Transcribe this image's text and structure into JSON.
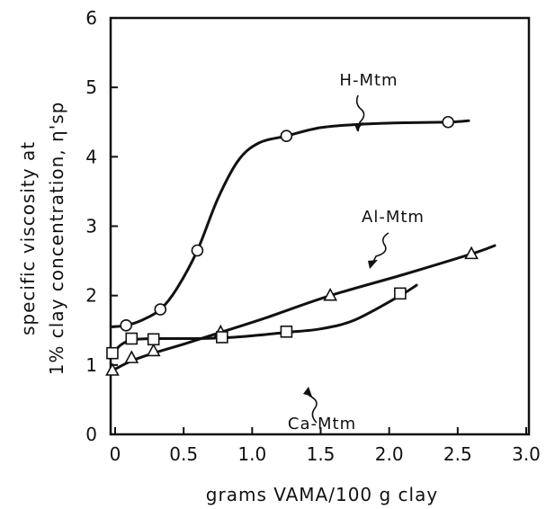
{
  "chart_data": {
    "type": "line",
    "title": "",
    "xlabel": "grams VAMA/100 g clay",
    "ylabel_line1": "specific viscosity at",
    "ylabel_line2": "1% clay concentration, η'sp",
    "xlim": [
      0,
      3.0
    ],
    "ylim": [
      0,
      6
    ],
    "x_ticks": [
      "0",
      "0.5",
      "1.0",
      "1.5",
      "2.0",
      "2.5",
      "3.0"
    ],
    "y_ticks": [
      "0",
      "1",
      "2",
      "3",
      "4",
      "5",
      "6"
    ],
    "grid": false,
    "series": [
      {
        "name": "H-Mtm",
        "marker": "circle",
        "points": [
          [
            0.08,
            1.57
          ],
          [
            0.33,
            1.8
          ],
          [
            0.6,
            2.65
          ],
          [
            1.25,
            4.3
          ],
          [
            2.43,
            4.5
          ]
        ],
        "curve": [
          [
            -0.02,
            1.55
          ],
          [
            0.08,
            1.57
          ],
          [
            0.2,
            1.65
          ],
          [
            0.33,
            1.8
          ],
          [
            0.45,
            2.1
          ],
          [
            0.6,
            2.65
          ],
          [
            0.75,
            3.4
          ],
          [
            0.9,
            3.95
          ],
          [
            1.05,
            4.2
          ],
          [
            1.25,
            4.3
          ],
          [
            1.5,
            4.42
          ],
          [
            1.8,
            4.47
          ],
          [
            2.1,
            4.49
          ],
          [
            2.43,
            4.5
          ],
          [
            2.58,
            4.52
          ]
        ]
      },
      {
        "name": "Al-Mtm",
        "marker": "triangle",
        "points": [
          [
            -0.02,
            0.92
          ],
          [
            0.12,
            1.1
          ],
          [
            0.28,
            1.2
          ],
          [
            0.77,
            1.47
          ],
          [
            1.57,
            2.0
          ],
          [
            2.6,
            2.6
          ]
        ],
        "curve": [
          [
            -0.02,
            0.92
          ],
          [
            0.12,
            1.06
          ],
          [
            0.28,
            1.17
          ],
          [
            0.5,
            1.3
          ],
          [
            0.77,
            1.47
          ],
          [
            1.1,
            1.68
          ],
          [
            1.57,
            2.0
          ],
          [
            2.1,
            2.3
          ],
          [
            2.6,
            2.6
          ],
          [
            2.77,
            2.72
          ]
        ]
      },
      {
        "name": "Ca-Mtm",
        "marker": "square",
        "points": [
          [
            -0.02,
            1.17
          ],
          [
            0.12,
            1.38
          ],
          [
            0.28,
            1.37
          ],
          [
            0.78,
            1.4
          ],
          [
            1.25,
            1.48
          ],
          [
            2.08,
            2.03
          ]
        ],
        "curve": [
          [
            -0.02,
            1.12
          ],
          [
            0.03,
            1.27
          ],
          [
            0.12,
            1.36
          ],
          [
            0.28,
            1.38
          ],
          [
            0.5,
            1.38
          ],
          [
            0.78,
            1.39
          ],
          [
            1.0,
            1.42
          ],
          [
            1.25,
            1.47
          ],
          [
            1.5,
            1.52
          ],
          [
            1.75,
            1.65
          ],
          [
            2.08,
            2.0
          ],
          [
            2.2,
            2.15
          ]
        ]
      }
    ],
    "annotations": [
      {
        "text": "H-Mtm",
        "series": "H-Mtm"
      },
      {
        "text": "Al-Mtm",
        "series": "Al-Mtm"
      },
      {
        "text": "Ca-Mtm",
        "series": "Ca-Mtm"
      }
    ]
  }
}
